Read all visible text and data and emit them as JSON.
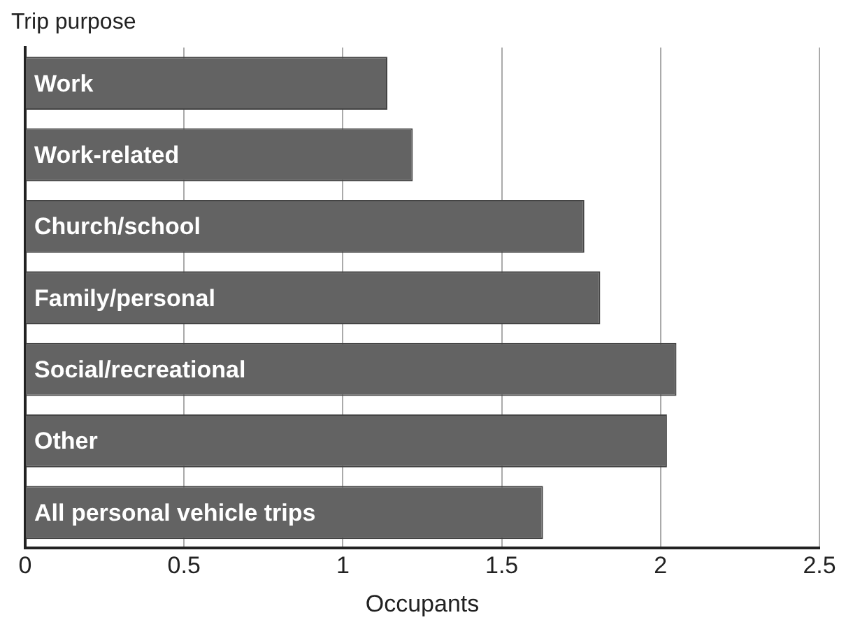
{
  "chart_data": {
    "type": "bar",
    "orientation": "horizontal",
    "ylabel": "Trip purpose",
    "xlabel": "Occupants",
    "categories": [
      "Work",
      "Work-related",
      "Church/school",
      "Family/personal",
      "Social/recreational",
      "Other",
      "All personal vehicle trips"
    ],
    "values": [
      1.14,
      1.22,
      1.76,
      1.81,
      2.05,
      2.02,
      1.63
    ],
    "color": "#636363",
    "xlim": [
      0,
      2.5
    ],
    "xticks": [
      0,
      0.5,
      1,
      1.5,
      2,
      2.5
    ],
    "grid": "x",
    "legend": false
  }
}
